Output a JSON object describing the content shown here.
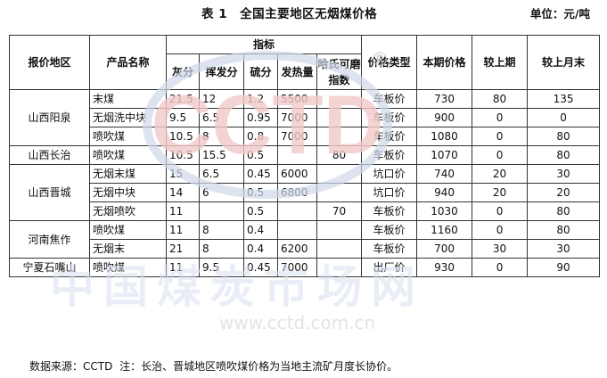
{
  "title": "表 1　全国主要地区无烟煤价格",
  "unit": "单位：元/吨",
  "headers": {
    "region": "报价地区",
    "product": "产品名称",
    "indicators": "指标",
    "ash": "灰分",
    "volatile": "挥发分",
    "sulfur": "硫分",
    "heat": "发热量",
    "hgi": "哈氏可磨指数",
    "price_type": "价格类型",
    "current_price": "本期价格",
    "vs_last": "较上期",
    "vs_last_month": "较上月末"
  },
  "groups": [
    {
      "region": "山西阳泉",
      "rows": [
        {
          "product": "末煤",
          "ash": "21.5",
          "vol": "12",
          "sulfur": "1.2",
          "heat": "5500",
          "hgi": "",
          "type": "车板价",
          "price": "730",
          "chg": "80",
          "chgm": "135"
        },
        {
          "product": "无烟洗中块",
          "ash": "9.5",
          "vol": "6.5",
          "sulfur": "0.95",
          "heat": "7000",
          "hgi": "",
          "type": "车板价",
          "price": "900",
          "chg": "0",
          "chgm": "0"
        },
        {
          "product": "喷吹煤",
          "ash": "10.5",
          "vol": "8",
          "sulfur": "0.8",
          "heat": "7000",
          "hgi": "",
          "type": "车板价",
          "price": "1080",
          "chg": "0",
          "chgm": "80"
        }
      ]
    },
    {
      "region": "山西长治",
      "rows": [
        {
          "product": "喷吹煤",
          "ash": "10.5",
          "vol": "15.5",
          "sulfur": "0.5",
          "heat": "",
          "hgi": "80",
          "type": "车板价",
          "price": "1070",
          "chg": "0",
          "chgm": "80"
        }
      ]
    },
    {
      "region": "山西晋城",
      "rows": [
        {
          "product": "无烟末煤",
          "ash": "15",
          "vol": "6.5",
          "sulfur": "0.45",
          "heat": "6000",
          "hgi": "",
          "type": "坑口价",
          "price": "740",
          "chg": "20",
          "chgm": "30"
        },
        {
          "product": "无烟中块",
          "ash": "14",
          "vol": "6",
          "sulfur": "0.5",
          "heat": "6800",
          "hgi": "",
          "type": "坑口价",
          "price": "940",
          "chg": "20",
          "chgm": "20"
        },
        {
          "product": "无烟喷吹",
          "ash": "11",
          "vol": "",
          "sulfur": "0.5",
          "heat": "",
          "hgi": "70",
          "type": "车板价",
          "price": "1030",
          "chg": "0",
          "chgm": "80"
        }
      ]
    },
    {
      "region": "河南焦作",
      "rows": [
        {
          "product": "喷吹煤",
          "ash": "11",
          "vol": "8",
          "sulfur": "0.4",
          "heat": "",
          "hgi": "",
          "type": "车板价",
          "price": "1160",
          "chg": "0",
          "chgm": "80"
        },
        {
          "product": "无烟末",
          "ash": "21",
          "vol": "8",
          "sulfur": "0.4",
          "heat": "6200",
          "hgi": "",
          "type": "车板价",
          "price": "700",
          "chg": "30",
          "chgm": "30"
        }
      ]
    },
    {
      "region": "宁夏石嘴山",
      "rows": [
        {
          "product": "喷吹煤",
          "ash": "11",
          "vol": "9.5",
          "sulfur": "0.45",
          "heat": "7000",
          "hgi": "",
          "type": "出厂价",
          "price": "930",
          "chg": "0",
          "chgm": "90"
        }
      ]
    }
  ],
  "note": {
    "source": "数据来源：CCTD",
    "remark": "注：长治、晋城地区喷吹煤价格为当地主流矿月度长协价。"
  },
  "watermark": {
    "logo": "CCTD",
    "reg": "®",
    "text": "中国煤炭市场网",
    "url": "www.cctd.com.cn"
  }
}
